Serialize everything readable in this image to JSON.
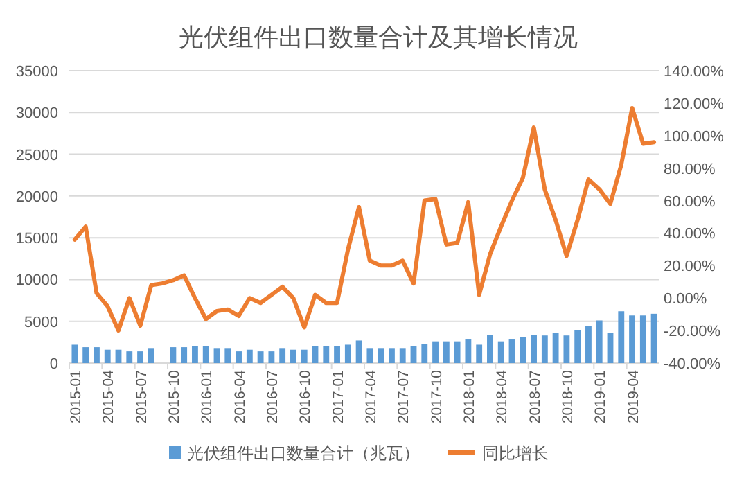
{
  "chart_data": {
    "type": "bar",
    "title": "光伏组件出口数量合计及其增长情况",
    "categories": [
      "2015-01",
      null,
      null,
      "2015-04",
      null,
      null,
      "2015-07",
      null,
      null,
      "2015-10",
      null,
      null,
      "2016-01",
      null,
      null,
      "2016-04",
      null,
      null,
      "2016-07",
      null,
      null,
      "2016-10",
      null,
      null,
      "2017-01",
      null,
      null,
      "2017-04",
      null,
      null,
      "2017-07",
      null,
      null,
      "2017-10",
      null,
      null,
      "2018-01",
      null,
      null,
      "2018-04",
      null,
      null,
      "2018-07",
      null,
      null,
      "2018-10",
      null,
      null,
      "2019-01",
      null,
      null,
      "2019-04",
      null,
      null
    ],
    "series": [
      {
        "name": "光伏组件出口数量合计（兆瓦）",
        "color": "#5b9bd5",
        "values": [
          2200,
          1900,
          1900,
          1600,
          1600,
          1400,
          1400,
          1800,
          null,
          1900,
          1900,
          2000,
          2000,
          1800,
          1800,
          1400,
          1600,
          1400,
          1400,
          1800,
          1600,
          1600,
          2000,
          2000,
          2000,
          2200,
          2700,
          1800,
          1800,
          1800,
          1800,
          2000,
          2300,
          2600,
          2600,
          2600,
          2900,
          2200,
          3400,
          2600,
          2900,
          3100,
          3400,
          3300,
          3600,
          3300,
          3900,
          4400,
          5100,
          3600,
          6200,
          5700,
          5700,
          5900
        ]
      },
      {
        "name": "同比增长",
        "type": "line",
        "axis": "y2",
        "color": "#ed7d31",
        "values": [
          36,
          44,
          3,
          -5,
          -20,
          0,
          -17,
          8,
          9,
          11,
          14,
          0,
          -13,
          -8,
          -7,
          -11,
          0,
          -3,
          2,
          7,
          0,
          -18,
          2,
          -3,
          -3,
          30,
          56,
          23,
          20,
          20,
          23,
          9,
          60,
          61,
          33,
          34,
          59,
          2,
          27,
          44,
          60,
          74,
          105,
          67,
          48,
          26,
          48,
          73,
          67,
          58,
          82,
          117,
          95,
          96
        ]
      }
    ],
    "ylim": [
      0,
      35000
    ],
    "yticks": [
      0,
      5000,
      10000,
      15000,
      20000,
      25000,
      30000,
      35000
    ],
    "y2lim": [
      -40,
      140
    ],
    "y2ticks": [
      {
        "value": -40,
        "label": "-40.00%"
      },
      {
        "value": -20,
        "label": "-20.00%"
      },
      {
        "value": 0,
        "label": "0.00%"
      },
      {
        "value": 20,
        "label": "20.00%"
      },
      {
        "value": 40,
        "label": "40.00%"
      },
      {
        "value": 60,
        "label": "60.00%"
      },
      {
        "value": 80,
        "label": "80.00%"
      },
      {
        "value": 100,
        "label": "100.00%"
      },
      {
        "value": 120,
        "label": "120.00%"
      },
      {
        "value": 140,
        "label": "140.00%"
      }
    ],
    "grid": "y",
    "legend": "bottom",
    "marker": "none",
    "line_style": "solid"
  }
}
